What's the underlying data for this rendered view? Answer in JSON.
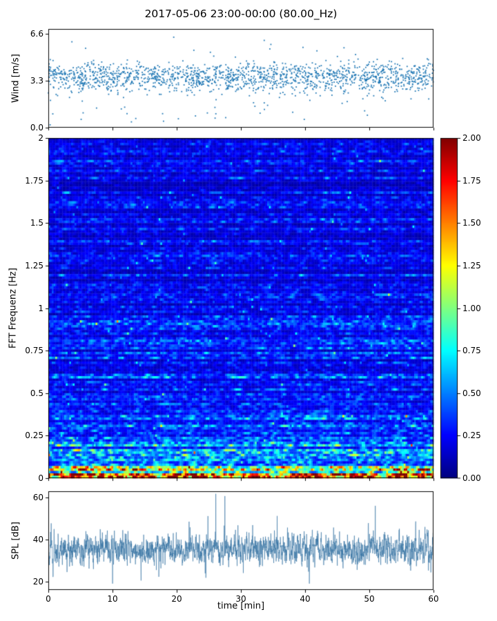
{
  "title": "2017-05-06 23:00-00:00 (80.00_Hz)",
  "chart_data": [
    {
      "id": "wind",
      "type": "scatter",
      "ylabel": "Wind [m/s]",
      "ylim": [
        0,
        6.93
      ],
      "ytick_values": [
        0.0,
        3.3,
        6.6
      ],
      "ytick_labels": [
        "0.0",
        "3.3",
        "6.6"
      ],
      "xlim": [
        0,
        60
      ],
      "marker_color": "#1f77b4",
      "points_summary": {
        "count": 1700,
        "mean": 3.55,
        "std": 0.5,
        "low_outlier_fraction": 0.05,
        "high_outlier_fraction": 0.012,
        "observed_min": 0.3,
        "observed_max": 6.5
      },
      "seed": 11
    },
    {
      "id": "spectrogram",
      "type": "heatmap",
      "ylabel": "FFT Frequenz [Hz]",
      "ylim": [
        0,
        2
      ],
      "ytick_values": [
        0,
        0.25,
        0.5,
        0.75,
        1,
        1.25,
        1.5,
        1.75,
        2
      ],
      "ytick_labels": [
        "0",
        "0.25",
        "0.5",
        "0.75",
        "1",
        "1.25",
        "1.5",
        "1.75",
        "2"
      ],
      "xlim": [
        0,
        60
      ],
      "colormap": "jet",
      "vmin": 0,
      "vmax": 2,
      "rows": 140,
      "cols": 220,
      "profile": {
        "description": "mostly 0.2-0.6 (blue) above 0.5 Hz with cyan streaks; rising to 0.8-1.4 (green/yellow) between 0.1-0.4 Hz; 1.5-2.0 (orange/red) below 0.08 Hz",
        "base_offset": 0.3,
        "lowfreq_peak": 1.6,
        "lowfreq_scale": 0.07,
        "midfreq_boost": 0.38,
        "midfreq_scale": 0.5
      },
      "colorbar": {
        "tick_values": [
          0,
          0.25,
          0.5,
          0.75,
          1.0,
          1.25,
          1.5,
          1.75,
          2.0
        ],
        "tick_labels": [
          "0.00",
          "0.25",
          "0.50",
          "0.75",
          "1.00",
          "1.25",
          "1.50",
          "1.75",
          "2.00"
        ]
      },
      "seed": 23
    },
    {
      "id": "spl",
      "type": "line",
      "ylabel": "SPL [dB]",
      "xlabel": "time [min]",
      "ylim": [
        16,
        63
      ],
      "ytick_values": [
        20,
        40,
        60
      ],
      "ytick_labels": [
        "20",
        "40",
        "60"
      ],
      "xlim": [
        0,
        60
      ],
      "xtick_values": [
        0,
        10,
        20,
        30,
        40,
        50,
        60
      ],
      "xtick_labels": [
        "0",
        "10",
        "20",
        "30",
        "40",
        "50",
        "60"
      ],
      "line_color": "rgba(49,111,160,0.85)",
      "series_summary": {
        "count": 2800,
        "mean": 35.5,
        "baseline_band": [
          28,
          44
        ],
        "spike_max": 61,
        "observed_min": 19
      },
      "seed": 37
    }
  ]
}
